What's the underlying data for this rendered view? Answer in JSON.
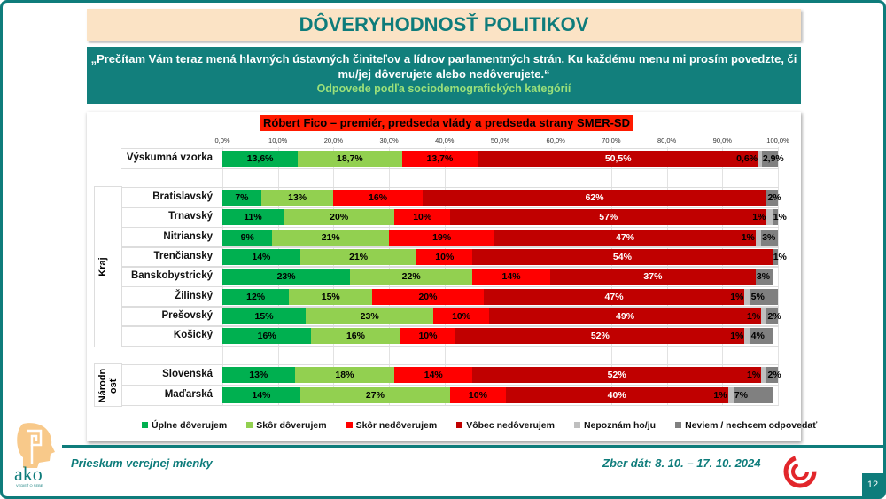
{
  "title": "DÔVERYHODNOSŤ POLITIKOV",
  "question": "„Prečítam Vám teraz mená hlavných ústavných činiteľov a lídrov parlamentných strán. Ku každému menu mi prosím povedzte, či mu/jej dôverujete alebo nedôverujete.“",
  "subtitle": "Odpovede podľa sociodemografických kategórií",
  "footer": {
    "left": "Prieskum verejnej mienky",
    "right": "Zber dát: 8. 10. – 17. 10. 2024",
    "page": "12",
    "logo_text": "ako",
    "logo_tagline": "VEDIEŤ O SEBE"
  },
  "chart_data": {
    "type": "bar",
    "orientation": "horizontal-stacked-100",
    "title": "Róbert Fico – premiér, predseda vlády a predseda strany SMER-SD",
    "xlim": [
      0,
      100
    ],
    "ticks": [
      "0,0%",
      "10,0%",
      "20,0%",
      "30,0%",
      "40,0%",
      "50,0%",
      "60,0%",
      "70,0%",
      "80,0%",
      "90,0%",
      "100,0%"
    ],
    "grid": true,
    "legend_position": "bottom",
    "series": [
      {
        "name": "Úplne dôverujem",
        "color": "#00b050"
      },
      {
        "name": "Skôr dôverujem",
        "color": "#92d050"
      },
      {
        "name": "Skôr nedôverujem",
        "color": "#ff0000"
      },
      {
        "name": "Vôbec nedôverujem",
        "color": "#c00000"
      },
      {
        "name": "Nepoznám ho/ju",
        "color": "#bfbfbf"
      },
      {
        "name": "Neviem / nechcem odpovedať",
        "color": "#808080"
      }
    ],
    "groups": [
      {
        "label": "",
        "rows": [
          {
            "category": "Výskumná vzorka",
            "values": [
              13.6,
              18.7,
              13.7,
              50.5,
              0.6,
              2.9
            ],
            "decimal": true
          }
        ]
      },
      {
        "label": "Kraj",
        "rows": [
          {
            "category": "Bratislavský",
            "values": [
              7,
              13,
              16,
              62,
              0,
              2
            ]
          },
          {
            "category": "Trnavský",
            "values": [
              11,
              20,
              10,
              57,
              1,
              1
            ]
          },
          {
            "category": "Nitriansky",
            "values": [
              9,
              21,
              19,
              47,
              1,
              3
            ]
          },
          {
            "category": "Trenčiansky",
            "values": [
              14,
              21,
              10,
              54,
              0,
              1
            ]
          },
          {
            "category": "Banskobystrický",
            "values": [
              23,
              22,
              14,
              37,
              0,
              3
            ]
          },
          {
            "category": "Žilinský",
            "values": [
              12,
              15,
              20,
              47,
              1,
              5
            ]
          },
          {
            "category": "Prešovský",
            "values": [
              15,
              23,
              10,
              49,
              1,
              2
            ]
          },
          {
            "category": "Košický",
            "values": [
              16,
              16,
              10,
              52,
              1,
              4
            ]
          }
        ]
      },
      {
        "label": "Národnosť",
        "rows": [
          {
            "category": "Slovenská",
            "values": [
              13,
              18,
              14,
              52,
              1,
              2
            ]
          },
          {
            "category": "Maďarská",
            "values": [
              14,
              27,
              10,
              40,
              1,
              7
            ]
          }
        ]
      }
    ]
  }
}
